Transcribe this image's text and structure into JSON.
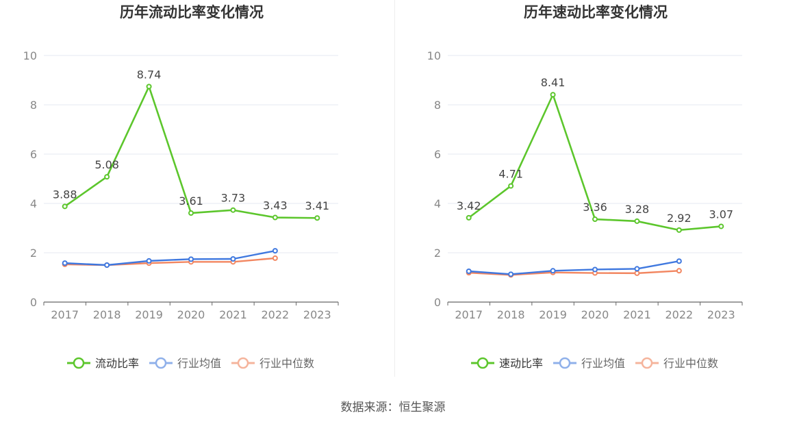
{
  "source_note": "数据来源：恒生聚源",
  "legend_labels": [
    "行业均值",
    "行业中位数"
  ],
  "colors": {
    "main": "#5cc62c",
    "avg": "#3f78df",
    "median": "#f28660",
    "grid": "#e6e9f2",
    "axis": "#666666",
    "tick": "#888888"
  },
  "chart_data": [
    {
      "type": "line",
      "title": "历年流动比率变化情况",
      "categories": [
        "2017",
        "2018",
        "2019",
        "2020",
        "2021",
        "2022",
        "2023"
      ],
      "ylim": [
        0,
        10
      ],
      "yticks": [
        0,
        2,
        4,
        6,
        8,
        10
      ],
      "grid": true,
      "legend": "bottom-center",
      "series": [
        {
          "name": "流动比率",
          "values": [
            3.88,
            5.08,
            8.74,
            3.61,
            3.73,
            3.43,
            3.41
          ],
          "labels": [
            "3.88",
            "5.08",
            "8.74",
            "3.61",
            "3.73",
            "3.43",
            "3.41"
          ]
        },
        {
          "name": "行业均值",
          "values": [
            1.58,
            1.5,
            1.67,
            1.74,
            1.75,
            2.08,
            null
          ]
        },
        {
          "name": "行业中位数",
          "values": [
            1.53,
            1.5,
            1.58,
            1.63,
            1.63,
            1.78,
            null
          ]
        }
      ]
    },
    {
      "type": "line",
      "title": "历年速动比率变化情况",
      "categories": [
        "2017",
        "2018",
        "2019",
        "2020",
        "2021",
        "2022",
        "2023"
      ],
      "ylim": [
        0,
        10
      ],
      "yticks": [
        0,
        2,
        4,
        6,
        8,
        10
      ],
      "grid": true,
      "legend": "bottom-center",
      "series": [
        {
          "name": "速动比率",
          "values": [
            3.42,
            4.71,
            8.41,
            3.36,
            3.28,
            2.92,
            3.07
          ],
          "labels": [
            "3.42",
            "4.71",
            "8.41",
            "3.36",
            "3.28",
            "2.92",
            "3.07"
          ]
        },
        {
          "name": "行业均值",
          "values": [
            1.25,
            1.13,
            1.27,
            1.32,
            1.35,
            1.66,
            null
          ]
        },
        {
          "name": "行业中位数",
          "values": [
            1.19,
            1.1,
            1.2,
            1.18,
            1.17,
            1.27,
            null
          ]
        }
      ]
    }
  ]
}
